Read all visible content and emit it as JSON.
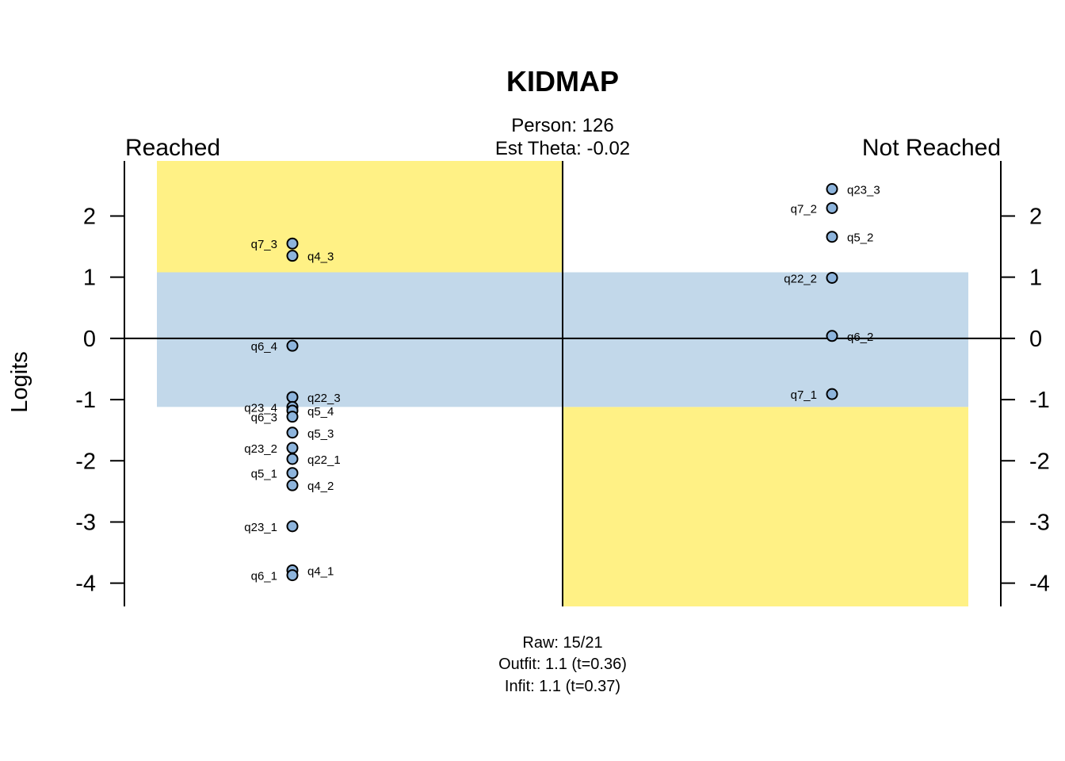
{
  "chart_data": {
    "type": "scatter",
    "title": "KIDMAP",
    "subtitle_lines": [
      "Person: 126",
      "Est Theta: -0.02"
    ],
    "left_header": "Reached",
    "right_header": "Not Reached",
    "ylabel": "Logits",
    "ylim": [
      -4.38,
      2.9
    ],
    "yticks": [
      -4,
      -3,
      -2,
      -1,
      0,
      1,
      2
    ],
    "ytick_labels": [
      "-4",
      "-3",
      "-2",
      "-1",
      "0",
      "1",
      "2"
    ],
    "theta": -0.02,
    "ci_band": [
      -1.12,
      1.08
    ],
    "colors": {
      "band": "#c2d8ea",
      "quadrant": "#fff185",
      "point_fill": "#8db4dc",
      "point_stroke": "#000000"
    },
    "series": [
      {
        "name": "Reached",
        "points": [
          {
            "label": "q7_3",
            "y": 1.55,
            "side": "left"
          },
          {
            "label": "q4_3",
            "y": 1.35,
            "side": "right"
          },
          {
            "label": "q6_4",
            "y": -0.12,
            "side": "left"
          },
          {
            "label": "q22_3",
            "y": -0.96,
            "side": "right"
          },
          {
            "label": "q23_4",
            "y": -1.12,
            "side": "left"
          },
          {
            "label": "q5_4",
            "y": -1.18,
            "side": "right"
          },
          {
            "label": "q6_3",
            "y": -1.28,
            "side": "left"
          },
          {
            "label": "q5_3",
            "y": -1.54,
            "side": "right"
          },
          {
            "label": "q23_2",
            "y": -1.79,
            "side": "left"
          },
          {
            "label": "q22_1",
            "y": -1.97,
            "side": "right"
          },
          {
            "label": "q5_1",
            "y": -2.2,
            "side": "left"
          },
          {
            "label": "q4_2",
            "y": -2.4,
            "side": "right"
          },
          {
            "label": "q23_1",
            "y": -3.07,
            "side": "left"
          },
          {
            "label": "q4_1",
            "y": -3.79,
            "side": "right"
          },
          {
            "label": "q6_1",
            "y": -3.87,
            "side": "left"
          }
        ]
      },
      {
        "name": "Not Reached",
        "points": [
          {
            "label": "q23_3",
            "y": 2.44,
            "side": "right"
          },
          {
            "label": "q7_2",
            "y": 2.13,
            "side": "left"
          },
          {
            "label": "q5_2",
            "y": 1.66,
            "side": "right"
          },
          {
            "label": "q22_2",
            "y": 0.99,
            "side": "left"
          },
          {
            "label": "q6_2",
            "y": 0.04,
            "side": "right"
          },
          {
            "label": "q7_1",
            "y": -0.91,
            "side": "left"
          }
        ]
      }
    ],
    "footer_lines": [
      "Raw: 15/21",
      "Outfit: 1.1 (t=0.36)",
      "Infit: 1.1 (t=0.37)"
    ]
  }
}
